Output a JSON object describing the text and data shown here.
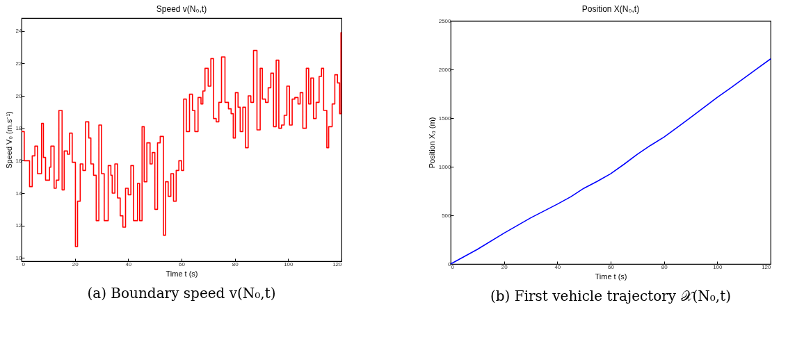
{
  "chart_data": [
    {
      "type": "step",
      "title": "Speed v(N₀,t)",
      "xlabel": "Time t (s)",
      "ylabel": "Speed V₀ (m.s⁻¹)",
      "annotations": [
        "(a) Boundary speed v(N₀,t)"
      ],
      "x": [
        0,
        1,
        3,
        4,
        5,
        6,
        7.5,
        8.2,
        9,
        10.5,
        11,
        12.2,
        13,
        14,
        15.2,
        16,
        17.2,
        18,
        19,
        20.2,
        21,
        22,
        23,
        24,
        25.2,
        26,
        27,
        28,
        29,
        30,
        31,
        32.5,
        33.5,
        34,
        35,
        36,
        37,
        38,
        39,
        40,
        41,
        42,
        43.5,
        44.3,
        45.2,
        46,
        47,
        48.2,
        49,
        50,
        51,
        52,
        53.2,
        54,
        55,
        56,
        57,
        58,
        59,
        60,
        60.8,
        61.8,
        63,
        64.1,
        65,
        66.2,
        67.3,
        68,
        68.8,
        70,
        71,
        72,
        73,
        74,
        75,
        76.3,
        77.6,
        78.6,
        79.4,
        80.2,
        81.2,
        82,
        83,
        84,
        85,
        86,
        87,
        88.3,
        89.5,
        90.3,
        91.5,
        92.5,
        93.5,
        94.5,
        95.5,
        96.5,
        97.5,
        98.5,
        99.5,
        100.5,
        101.5,
        102.5,
        103.7,
        104.5,
        105.5,
        106.8,
        107.7,
        108.5,
        109.5,
        110.5,
        111.6,
        112.5,
        113.3,
        114.5,
        115.2,
        116.5,
        117.5,
        118.5,
        119.3,
        119.8,
        120
      ],
      "series": [
        {
          "color": "#ff0000",
          "values": [
            17.8,
            16.0,
            14.4,
            16.3,
            16.9,
            15.2,
            18.3,
            16.2,
            14.8,
            15.6,
            16.9,
            14.3,
            14.8,
            19.1,
            14.2,
            16.6,
            16.4,
            17.7,
            15.9,
            10.7,
            13.5,
            15.8,
            15.4,
            18.4,
            17.4,
            15.8,
            15.1,
            12.3,
            18.2,
            15.2,
            12.3,
            15.7,
            15.1,
            14.0,
            15.8,
            13.7,
            12.6,
            11.9,
            14.3,
            13.9,
            15.7,
            12.3,
            14.6,
            12.3,
            18.1,
            14.7,
            17.1,
            15.8,
            16.5,
            13.0,
            17.1,
            17.5,
            11.4,
            14.7,
            13.8,
            15.2,
            13.5,
            15.4,
            16.0,
            15.4,
            19.8,
            17.8,
            20.1,
            19.1,
            17.8,
            19.9,
            19.5,
            20.3,
            21.7,
            20.6,
            22.3,
            18.6,
            18.4,
            19.6,
            22.4,
            19.6,
            19.2,
            18.9,
            17.4,
            20.2,
            19.3,
            17.8,
            19.3,
            16.8,
            20.0,
            19.6,
            22.8,
            17.9,
            21.7,
            19.8,
            19.6,
            20.5,
            21.4,
            18.1,
            22.2,
            18.0,
            18.2,
            18.8,
            20.6,
            18.2,
            19.8,
            19.9,
            19.5,
            20.2,
            18.0,
            21.7,
            19.5,
            21.1,
            18.6,
            19.6,
            21.2,
            21.7,
            19.1,
            16.8,
            18.1,
            19.5,
            21.3,
            20.8,
            18.9,
            23.9,
            23.9
          ]
        }
      ],
      "xlim": [
        0,
        120
      ],
      "xticks": [
        0,
        20,
        40,
        60,
        80,
        100,
        120
      ],
      "ylim": [
        9.8,
        24.8
      ],
      "yticks": [
        10,
        12,
        14,
        16,
        18,
        20,
        22,
        24
      ],
      "grid": false
    },
    {
      "type": "line",
      "title": "Position X(N₀,t)",
      "xlabel": "Time t (s)",
      "ylabel": "Position X₀ (m)",
      "annotations": [
        "(b) First vehicle trajectory 𝒳(N₀,t)"
      ],
      "x": [
        0,
        10,
        20,
        30,
        40,
        45,
        50,
        55,
        60,
        65,
        70,
        75,
        80,
        85,
        90,
        95,
        100,
        105,
        110,
        115,
        120
      ],
      "series": [
        {
          "color": "#0000ff",
          "values": [
            0,
            150,
            317,
            474,
            615,
            690,
            779,
            850,
            928,
            1025,
            1128,
            1220,
            1304,
            1405,
            1506,
            1610,
            1714,
            1810,
            1910,
            2010,
            2109
          ]
        }
      ],
      "xlim": [
        0,
        120
      ],
      "xticks": [
        0,
        20,
        40,
        60,
        80,
        100,
        120
      ],
      "ylim": [
        0,
        2500
      ],
      "yticks": [
        0,
        500,
        1000,
        1500,
        2000,
        2500
      ],
      "grid": false
    }
  ]
}
